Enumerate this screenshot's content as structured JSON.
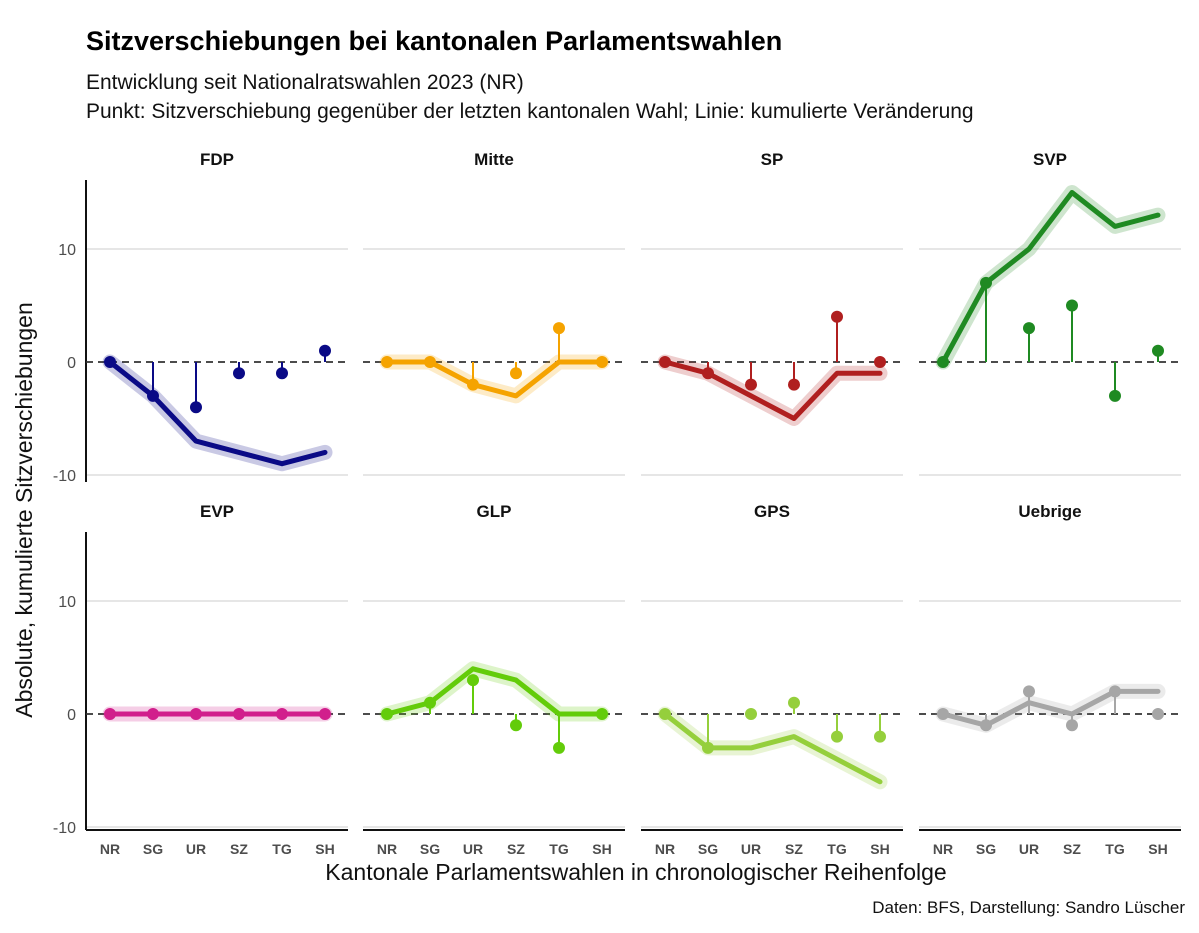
{
  "title": "Sitzverschiebungen bei kantonalen Parlamentswahlen",
  "subtitle_line1": "Entwicklung seit Nationalratswahlen 2023 (NR)",
  "subtitle_line2": "Punkt: Sitzverschiebung gegenüber der letzten kantonalen Wahl; Linie: kumulierte Veränderung",
  "caption": "Daten: BFS, Darstellung: Sandro Lüscher",
  "chart_data": {
    "type": "line",
    "xlabel": "Kantonale Parlamentswahlen in chronologischer Reihenfolge",
    "ylabel": "Absolute, kumulierte Sitzverschiebungen",
    "categories": [
      "NR",
      "SG",
      "UR",
      "SZ",
      "TG",
      "SH"
    ],
    "ylim": [
      -10,
      16
    ],
    "yticks": [
      -10,
      0,
      10
    ],
    "grid": true,
    "panels": [
      {
        "name": "FDP",
        "color": "#0a0a86",
        "points": [
          0,
          -3,
          -4,
          -1,
          -1,
          1
        ],
        "cumulative": [
          0,
          -3,
          -7,
          -8,
          -9,
          -8
        ]
      },
      {
        "name": "Mitte",
        "color": "#f5a300",
        "points": [
          0,
          0,
          -2,
          -1,
          3,
          0
        ],
        "cumulative": [
          0,
          0,
          -2,
          -3,
          0,
          0
        ]
      },
      {
        "name": "SP",
        "color": "#b01f1f",
        "points": [
          0,
          -1,
          -2,
          -2,
          4,
          0
        ],
        "cumulative": [
          0,
          -1,
          -3,
          -5,
          -1,
          -1
        ]
      },
      {
        "name": "SVP",
        "color": "#1f8a22",
        "points": [
          0,
          7,
          3,
          5,
          -3,
          1
        ],
        "cumulative": [
          0,
          7,
          10,
          15,
          12,
          13
        ]
      },
      {
        "name": "EVP",
        "color": "#d11f8c",
        "points": [
          0,
          0,
          0,
          0,
          0,
          0
        ],
        "cumulative": [
          0,
          0,
          0,
          0,
          0,
          0
        ]
      },
      {
        "name": "GLP",
        "color": "#63cc0a",
        "points": [
          0,
          1,
          3,
          -1,
          -3,
          0
        ],
        "cumulative": [
          0,
          1,
          4,
          3,
          0,
          0
        ]
      },
      {
        "name": "GPS",
        "color": "#95cf3c",
        "points": [
          0,
          -3,
          0,
          1,
          -2,
          -2
        ],
        "cumulative": [
          0,
          -3,
          -3,
          -2,
          -4,
          -6
        ]
      },
      {
        "name": "Uebrige",
        "color": "#a6a6a6",
        "points": [
          0,
          -1,
          2,
          -1,
          2,
          0
        ],
        "cumulative": [
          0,
          -1,
          1,
          0,
          2,
          2
        ]
      }
    ]
  }
}
